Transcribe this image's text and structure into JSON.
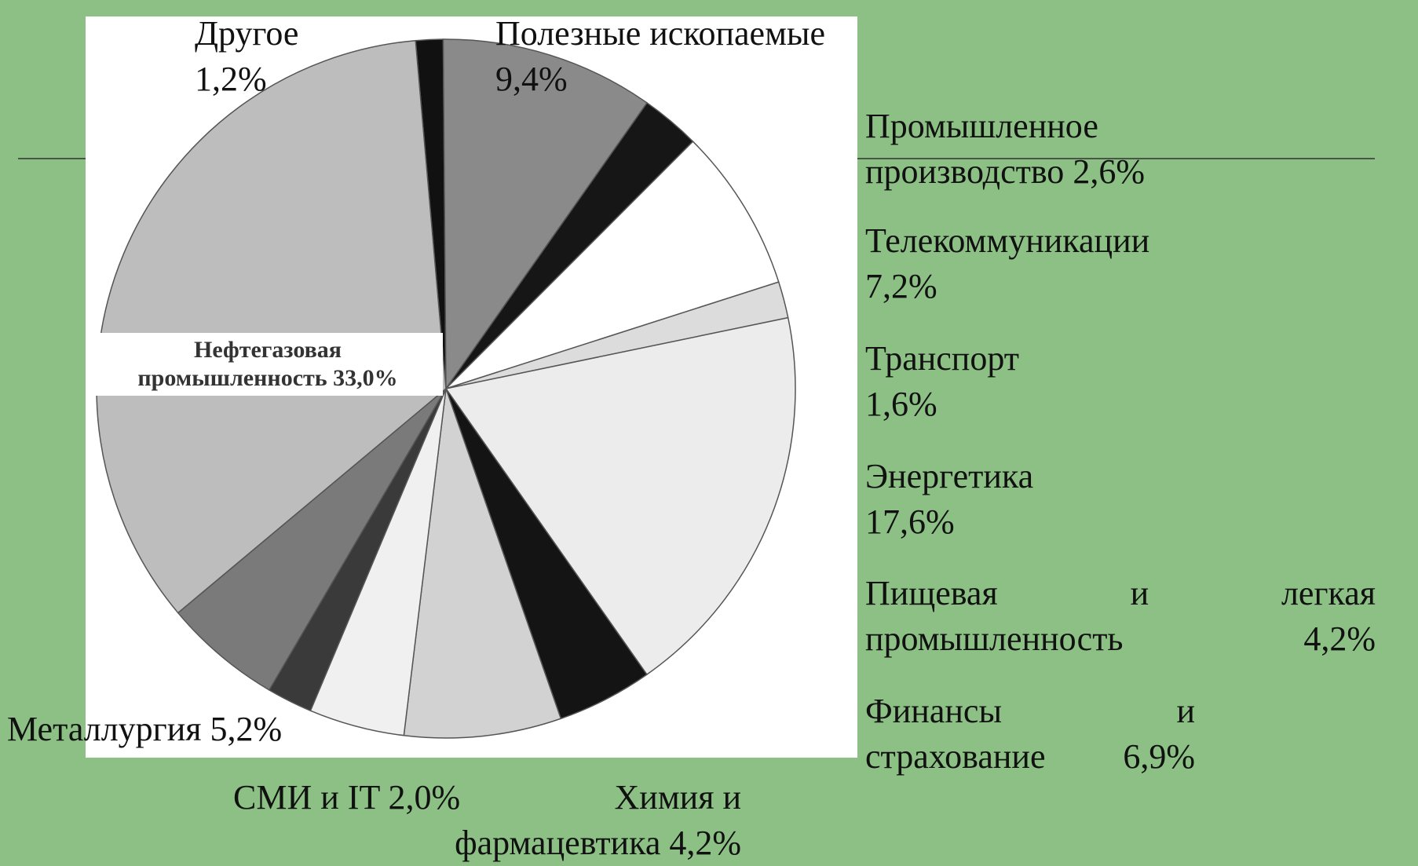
{
  "chart_data": {
    "type": "pie",
    "categories": [
      "Другое",
      "Полезные ископаемые",
      "Промышленное производство",
      "Телекоммуникации",
      "Транспорт",
      "Энергетика",
      "Пищевая и легкая промышленность",
      "Финансы и страхование",
      "Химия и фармацевтика",
      "СМИ и IT",
      "Металлургия",
      "Нефтегазовая промышленность"
    ],
    "values": [
      1.2,
      9.4,
      2.6,
      7.2,
      1.6,
      17.6,
      4.2,
      6.9,
      4.2,
      2.0,
      5.2,
      33.0
    ],
    "value_labels": [
      "1,2%",
      "9,4%",
      "2,6%",
      "7,2%",
      "1,6%",
      "17,6%",
      "4,2%",
      "6,9%",
      "4,2%",
      "2,0%",
      "5,2%",
      "33,0%"
    ],
    "colors": [
      "#111111",
      "#8a8a8a",
      "#161616",
      "#ffffff",
      "#dcdcdc",
      "#ececec",
      "#141414",
      "#d2d2d2",
      "#f0f0f0",
      "#3a3a3a",
      "#7a7a7a",
      "#bdbdbd"
    ]
  }
}
